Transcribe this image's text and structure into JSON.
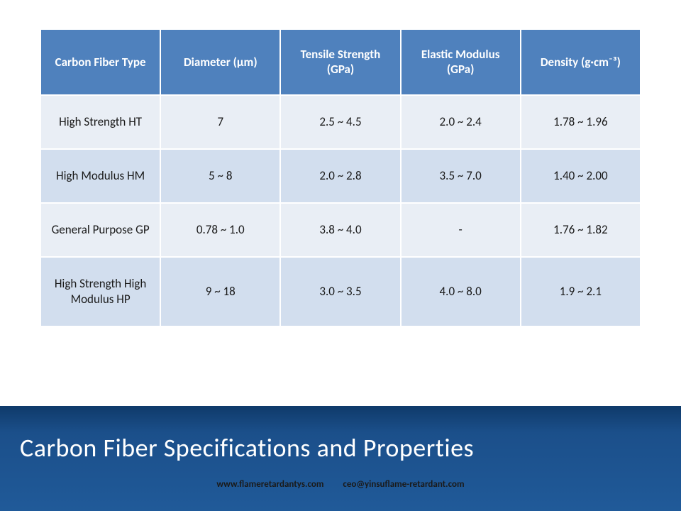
{
  "table": {
    "header_bg": "#4f81bd",
    "header_fg": "#ffffff",
    "row_alt_bg_light": "#e9eef5",
    "row_alt_bg_dark": "#d2deee",
    "columns": [
      "Carbon Fiber Type",
      "Diameter (μm)",
      "Tensile Strength (GPa)",
      "Elastic Modulus (GPa)",
      "Density (g·cm⁻³)"
    ],
    "rows": [
      {
        "type": "High Strength HT",
        "diameter": "7",
        "tensile": "2.5 ~ 4.5",
        "modulus": "2.0 ~ 2.4",
        "density": "1.78 ~ 1.96"
      },
      {
        "type": "High Modulus HM",
        "diameter": "5 ~ 8",
        "tensile": "2.0 ~ 2.8",
        "modulus": "3.5 ~ 7.0",
        "density": "1.40 ~ 2.00"
      },
      {
        "type": "General Purpose GP",
        "diameter": "0.78 ~ 1.0",
        "tensile": "3.8 ~ 4.0",
        "modulus": "-",
        "density": "1.76 ~ 1.82"
      },
      {
        "type": "High Strength High Modulus HP",
        "diameter": "9 ~ 18",
        "tensile": "3.0 ~ 3.5",
        "modulus": "4.0 ~ 8.0",
        "density": "1.9 ~ 2.1"
      }
    ]
  },
  "footer": {
    "title": "Carbon Fiber Specifications and Properties",
    "website": "www.flameretardantys.com",
    "email": "ceo@yinsuflame-retardant.com",
    "bg_gradient_top": "#0f3a6a",
    "bg_gradient_bottom": "#205a99",
    "title_color": "#ffffff",
    "title_fontsize": 36
  }
}
